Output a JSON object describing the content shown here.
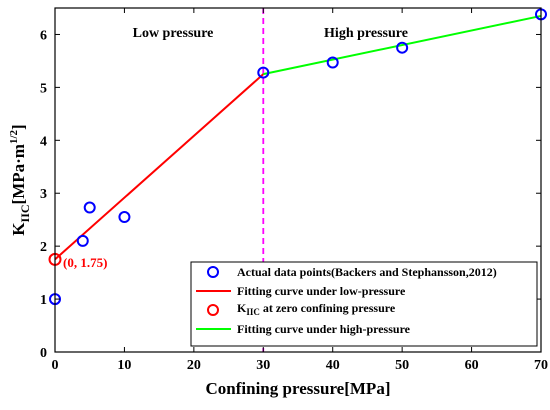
{
  "chart_data": {
    "type": "scatter",
    "xlabel": "Confining pressure[MPa]",
    "ylabel_main": "K",
    "ylabel_sub": "IIC",
    "ylabel_unit": "[MPa·m",
    "ylabel_sup": "1/2",
    "ylabel_close": "]",
    "xlim": [
      0,
      70
    ],
    "ylim": [
      0,
      6.5
    ],
    "x_ticks": [
      0,
      10,
      20,
      30,
      40,
      50,
      60,
      70
    ],
    "y_ticks": [
      0,
      1,
      2,
      3,
      4,
      5,
      6
    ],
    "grid": false,
    "legend_position": "bottom-right",
    "region_labels": {
      "low": "Low pressure",
      "high": "High pressure"
    },
    "divider_x": 30,
    "annotation": {
      "text": "(0, 1.75)",
      "x": 0,
      "y": 1.75
    },
    "series": [
      {
        "name": "Actual data points(Backers and Stephansson,2012)",
        "kind": "points",
        "color": "#0000ff",
        "points": [
          [
            0,
            1.0
          ],
          [
            4,
            2.1
          ],
          [
            5,
            2.73
          ],
          [
            10,
            2.55
          ],
          [
            30,
            5.28
          ],
          [
            40,
            5.47
          ],
          [
            50,
            5.75
          ],
          [
            70,
            6.38
          ]
        ]
      },
      {
        "name": "Fitting curve under low-pressure",
        "kind": "line",
        "color": "#ff0000",
        "points": [
          [
            0,
            1.75
          ],
          [
            30,
            5.25
          ]
        ]
      },
      {
        "name_main": "K",
        "name_sub": "IIC",
        "name_rest": " at zero confining pressure",
        "kind": "point",
        "color": "#ff0000",
        "points": [
          [
            0,
            1.75
          ]
        ]
      },
      {
        "name": "Fitting curve under high-pressure",
        "kind": "line",
        "color": "#00ff00",
        "points": [
          [
            30,
            5.25
          ],
          [
            70,
            6.35
          ]
        ]
      }
    ]
  },
  "colors": {
    "divider": "#ff00ff",
    "axis": "#000000"
  }
}
